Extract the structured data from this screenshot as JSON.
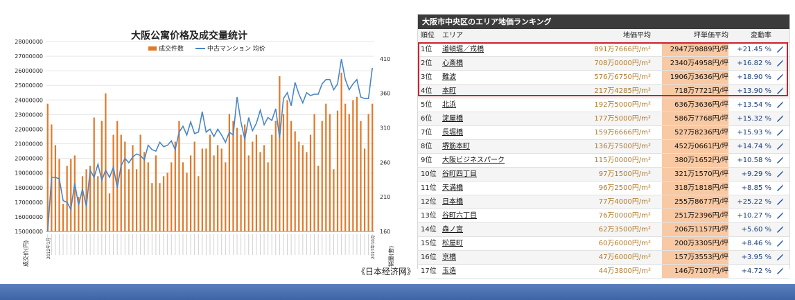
{
  "chart_data": {
    "type": "bar",
    "title": "大阪公寓价格及成交量统计",
    "legend": {
      "placement": "top",
      "items": [
        {
          "name": "成交件数",
          "color": "#e07a2a"
        },
        {
          "name": "中古マンション 均价",
          "color": "#4a86c5"
        }
      ]
    },
    "y_left": {
      "label": "成交价(円)",
      "ylim": [
        15000000,
        28000000
      ],
      "ticks": [
        "28000000",
        "27000000",
        "26000000",
        "25000000",
        "24000000",
        "23000000",
        "22000000",
        "21000000",
        "20000000",
        "19000000",
        "18000000",
        "17000000",
        "16000000",
        "15000000"
      ]
    },
    "y_right": {
      "label": "销量(套)",
      "ylim": [
        160,
        435
      ],
      "ticks": [
        "410",
        "360",
        "310",
        "260",
        "210",
        "160"
      ]
    },
    "x_label_first": "2012年1月",
    "x_label_last": "2017年10月",
    "series": [
      {
        "name": "成交件数",
        "axis": "right",
        "values": [
          345,
          315,
          285,
          265,
          200,
          255,
          265,
          270,
          210,
          240,
          250,
          255,
          325,
          240,
          320,
          360,
          215,
          300,
          320,
          300,
          290,
          250,
          285,
          250,
          300,
          275,
          260,
          230,
          270,
          230,
          240,
          245,
          260,
          290,
          320,
          260,
          245,
          270,
          290,
          240,
          280,
          280,
          300,
          270,
          285,
          280,
          260,
          330,
          320,
          310,
          300,
          315,
          270,
          290,
          300,
          275,
          285,
          260,
          300,
          320,
          385,
          330,
          350,
          320,
          305,
          290,
          285,
          275,
          300,
          330,
          255,
          320,
          345,
          330,
          250,
          335,
          390,
          345,
          330,
          350,
          355,
          320,
          280,
          330,
          345
        ],
        "color": "#e07a2a"
      },
      {
        "name": "中古マンション 均价",
        "axis": "left",
        "values": [
          15000000,
          18700000,
          18700000,
          18600000,
          17100000,
          17000000,
          16500000,
          18300000,
          16800000,
          17900000,
          16700000,
          19200000,
          18700000,
          19600000,
          18500000,
          19200000,
          18700000,
          19400000,
          18000000,
          19500000,
          20000000,
          19700000,
          20100000,
          20300000,
          20200000,
          19900000,
          20900000,
          20600000,
          20500000,
          21100000,
          20800000,
          20900000,
          21200000,
          20600000,
          21800000,
          22200000,
          21600000,
          22500000,
          21700000,
          21800000,
          23200000,
          21800000,
          22000000,
          21500000,
          22000000,
          21600000,
          21100000,
          21800000,
          21600000,
          24200000,
          22500000,
          21300000,
          22800000,
          21900000,
          22400000,
          23300000,
          22300000,
          22800000,
          22600000,
          23400000,
          21400000,
          24100000,
          24500000,
          23600000,
          25200000,
          24400000,
          23800000,
          24500000,
          24300000,
          24400000,
          24400000,
          25100000,
          25400000,
          25400000,
          24700000,
          25100000,
          26800000,
          25400000,
          24700000,
          25100000,
          25400000,
          24200000,
          24100000,
          24100000,
          26200000
        ],
        "color": "#4a86c5"
      }
    ]
  },
  "caption": "《日本经济网》",
  "ranking": {
    "header": "大阪市中央区のエリア地価ランキング",
    "columns": [
      "順位",
      "エリア",
      "地価平均",
      "坪単価平均",
      "変動率"
    ],
    "rows": [
      {
        "rank": "1位",
        "area": "道頓堀／戎橋",
        "land": "891万7666円/m²",
        "unit": "2947万9889円/坪",
        "change": "+21.45 %"
      },
      {
        "rank": "2位",
        "area": "心斎橋",
        "land": "708万0000円/m²",
        "unit": "2340万4958円/坪",
        "change": "+16.82 %"
      },
      {
        "rank": "3位",
        "area": "難波",
        "land": "576万6750円/m²",
        "unit": "1906万3636円/坪",
        "change": "+18.90 %"
      },
      {
        "rank": "4位",
        "area": "本町",
        "land": "217万4285円/m²",
        "unit": "718万7721円/坪",
        "change": "+13.90 %"
      },
      {
        "rank": "5位",
        "area": "北浜",
        "land": "192万5000円/m²",
        "unit": "636万3636円/坪",
        "change": "+13.54 %"
      },
      {
        "rank": "6位",
        "area": "淀屋橋",
        "land": "177万5000円/m²",
        "unit": "586万7768円/坪",
        "change": "+15.32 %"
      },
      {
        "rank": "7位",
        "area": "長堀橋",
        "land": "159万6666円/m²",
        "unit": "527万8236円/坪",
        "change": "+15.93 %"
      },
      {
        "rank": "8位",
        "area": "堺筋本町",
        "land": "136万7500円/m²",
        "unit": "452万0661円/坪",
        "change": "+14.74 %"
      },
      {
        "rank": "9位",
        "area": "大阪ビジネスパーク",
        "land": "115万0000円/m²",
        "unit": "380万1652円/坪",
        "change": "+10.58 %"
      },
      {
        "rank": "10位",
        "area": "谷町四丁目",
        "land": "97万1500円/m²",
        "unit": "321万1570円/坪",
        "change": "+9.29 %"
      },
      {
        "rank": "11位",
        "area": "天満橋",
        "land": "96万2500円/m²",
        "unit": "318万1818円/坪",
        "change": "+8.85 %"
      },
      {
        "rank": "12位",
        "area": "日本橋",
        "land": "77万4000円/m²",
        "unit": "255万8677円/坪",
        "change": "+25.22 %"
      },
      {
        "rank": "13位",
        "area": "谷町六丁目",
        "land": "76万0000円/m²",
        "unit": "251万2396円/坪",
        "change": "+10.27 %"
      },
      {
        "rank": "14位",
        "area": "森ノ宮",
        "land": "62万3500円/m²",
        "unit": "206万1157円/坪",
        "change": "+5.60 %"
      },
      {
        "rank": "15位",
        "area": "松屋町",
        "land": "60万6000円/m²",
        "unit": "200万3305円/坪",
        "change": "+8.46 %"
      },
      {
        "rank": "16位",
        "area": "京橋",
        "land": "47万6000円/m²",
        "unit": "157万3553円/坪",
        "change": "+3.95 %"
      },
      {
        "rank": "17位",
        "area": "玉造",
        "land": "44万3800円/m²",
        "unit": "146万7107円/坪",
        "change": "+4.72 %"
      }
    ]
  }
}
